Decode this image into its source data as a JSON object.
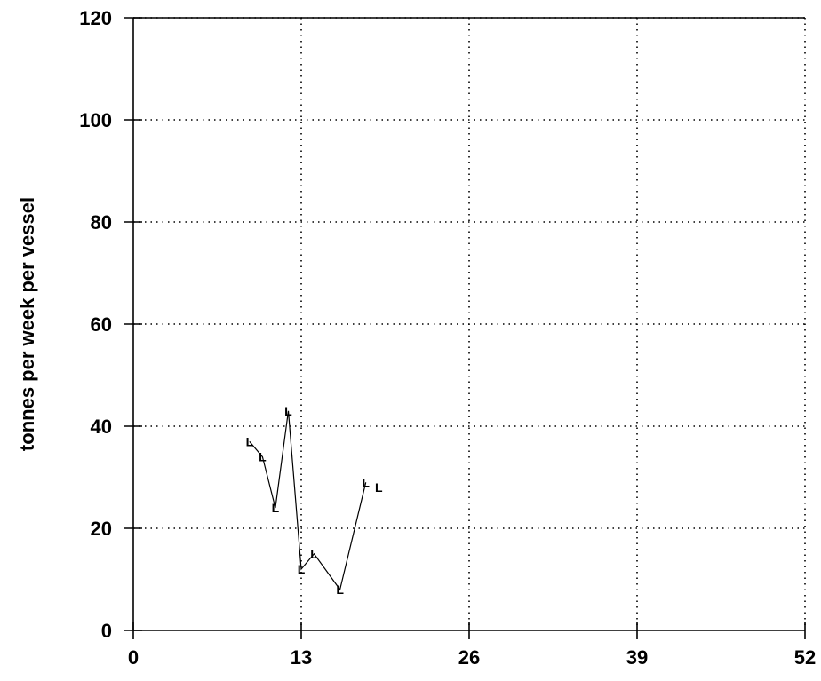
{
  "chart_data": {
    "type": "line",
    "title": "",
    "xlabel": "",
    "ylabel": "tonnes per week per vessel",
    "xlim": [
      0,
      52
    ],
    "ylim": [
      0,
      120
    ],
    "xticks": [
      0,
      13,
      26,
      39,
      52
    ],
    "xtick_labels": [
      "0",
      "13",
      "26",
      "39",
      "52"
    ],
    "yticks": [
      0,
      20,
      40,
      60,
      80,
      100,
      120
    ],
    "ytick_labels": [
      "0",
      "20",
      "40",
      "60",
      "80",
      "100",
      "120"
    ],
    "grid": true,
    "grid_style": "dotted",
    "series": [
      {
        "marker_label": "L",
        "color": "#000000",
        "x": [
          9,
          10,
          11,
          12,
          13,
          14,
          16,
          18,
          19
        ],
        "y": [
          37,
          34,
          24,
          43,
          12,
          15,
          8,
          29,
          28
        ],
        "connected_points": 8
      }
    ]
  }
}
